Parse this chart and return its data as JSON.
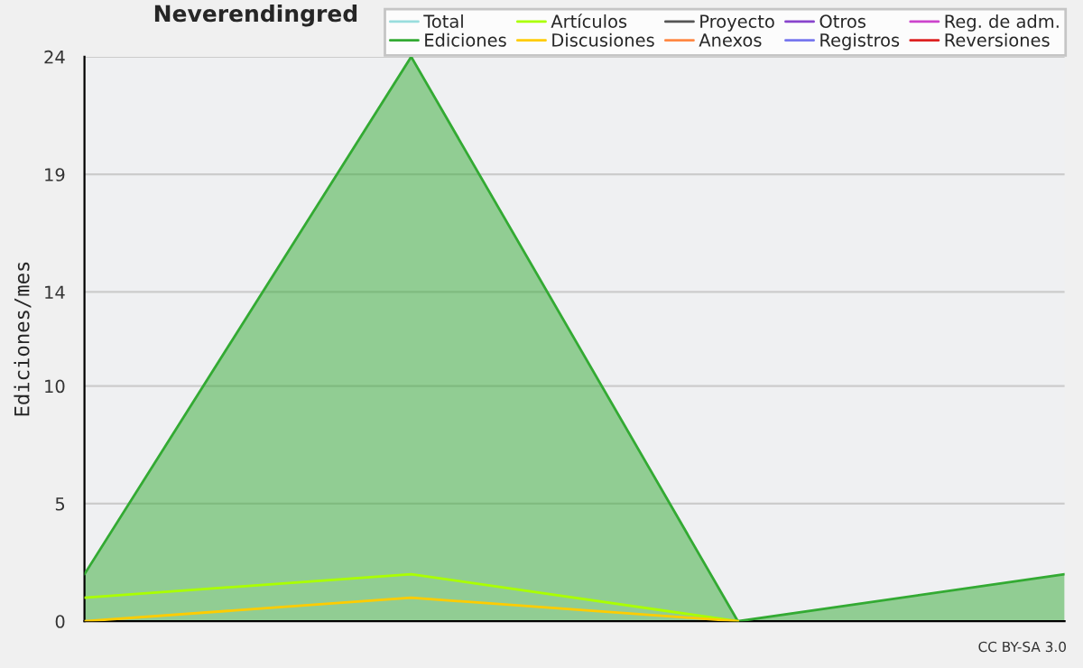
{
  "chart_data": {
    "type": "line",
    "title": "Neverendingred",
    "ylabel": "Ediciones/mes",
    "categories": [
      null,
      null,
      null,
      null
    ],
    "series": [
      {
        "name": "Total",
        "color": "#99dddd",
        "values": [
          null,
          null,
          null,
          null
        ]
      },
      {
        "name": "Ediciones",
        "color": "#33aa33",
        "type": "area",
        "values": [
          2,
          24,
          0,
          2
        ]
      },
      {
        "name": "Artículos",
        "color": "#aaff00",
        "values": [
          1,
          2,
          0,
          null
        ]
      },
      {
        "name": "Discusiones",
        "color": "#ffcc00",
        "values": [
          0,
          1,
          0,
          null
        ]
      },
      {
        "name": "Proyecto",
        "color": "#555555",
        "values": [
          null,
          null,
          null,
          null
        ]
      },
      {
        "name": "Anexos",
        "color": "#ff8844",
        "values": [
          null,
          null,
          null,
          null
        ]
      },
      {
        "name": "Otros",
        "color": "#8844cc",
        "values": [
          null,
          null,
          null,
          null
        ]
      },
      {
        "name": "Registros",
        "color": "#7777ee",
        "values": [
          null,
          null,
          null,
          null
        ]
      },
      {
        "name": "Reg. de adm.",
        "color": "#cc44cc",
        "values": [
          null,
          null,
          null,
          null
        ]
      },
      {
        "name": "Reversiones",
        "color": "#dd2222",
        "values": [
          null,
          null,
          null,
          null
        ]
      }
    ],
    "ylim": [
      0,
      24
    ],
    "yticks": [
      0,
      5,
      10,
      14,
      19,
      24
    ],
    "grid": "y",
    "legend": "top right",
    "annotations": [
      "CC BY-SA 3.0"
    ]
  }
}
